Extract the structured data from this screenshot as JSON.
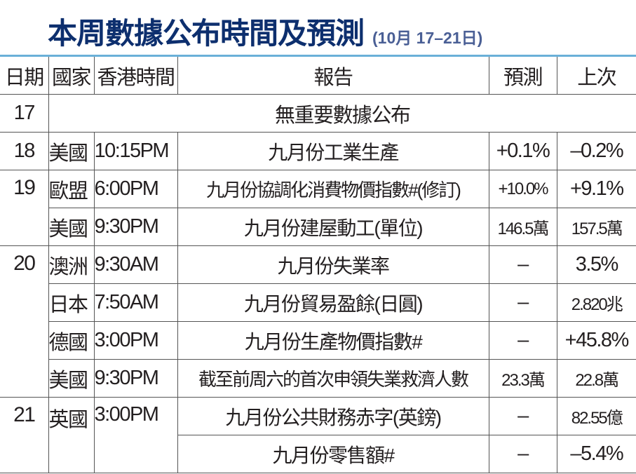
{
  "title": "本周數據公布時間及預測",
  "subtitle": "(10月 17–21日)",
  "colors": {
    "title": "#0d2f6e",
    "subtitle": "#4a5f95",
    "top_rule": "#6ab0d8"
  },
  "headers": [
    "日期",
    "國家",
    "香港時間",
    "報告",
    "預測",
    "上次"
  ],
  "day17": {
    "date": "17",
    "note": "無重要數據公布"
  },
  "rows": [
    {
      "date": "18",
      "country": "美國",
      "time": "10:15PM",
      "report": "九月份工業生產",
      "forecast": "+0.1%",
      "previous": "–0.2%"
    },
    {
      "date": "19",
      "country": "歐盟",
      "time": "6:00PM",
      "report": "九月份協調化消費物價指數#(修訂)",
      "forecast": "+10.0%",
      "previous": "+9.1%"
    },
    {
      "country": "美國",
      "time": "9:30PM",
      "report": "九月份建屋動工(單位)",
      "forecast": "146.5萬",
      "previous": "157.5萬"
    },
    {
      "date": "20",
      "country": "澳洲",
      "time": "9:30AM",
      "report": "九月份失業率",
      "forecast": "–",
      "previous": "3.5%"
    },
    {
      "country": "日本",
      "time": "7:50AM",
      "report": "九月份貿易盈餘(日圓)",
      "forecast": "–",
      "previous": "2.820兆"
    },
    {
      "country": "德國",
      "time": "3:00PM",
      "report": "九月份生產物價指數#",
      "forecast": "–",
      "previous": "+45.8%"
    },
    {
      "country": "美國",
      "time": "9:30PM",
      "report": "截至前周六的首次申領失業救濟人數",
      "forecast": "23.3萬",
      "previous": "22.8萬"
    },
    {
      "date": "21",
      "country": "英國",
      "time": "3:00PM",
      "report": "九月份公共財務赤字(英鎊)",
      "forecast": "–",
      "previous": "82.55億"
    },
    {
      "report": "九月份零售額#",
      "forecast": "–",
      "previous": "–5.4%"
    }
  ]
}
